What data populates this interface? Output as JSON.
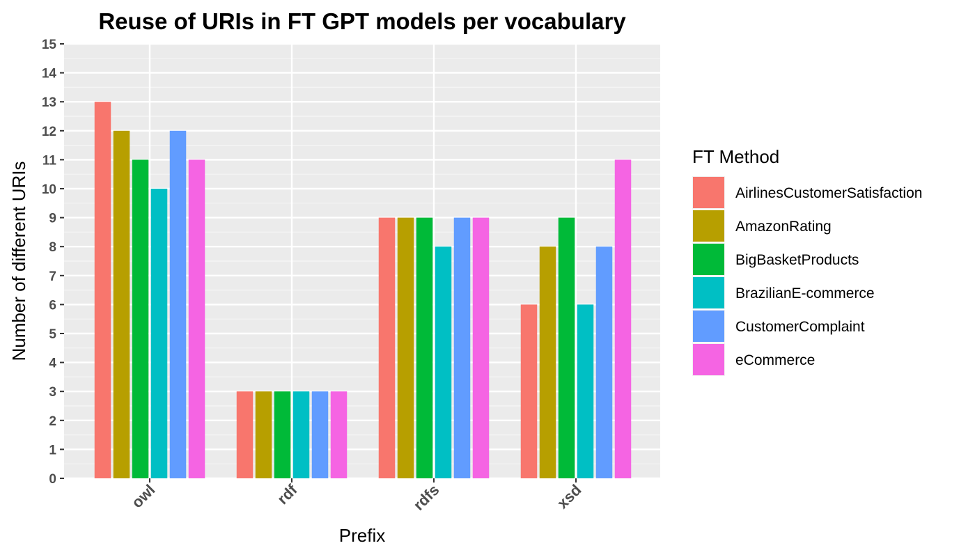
{
  "chart_data": {
    "type": "bar",
    "title": "Reuse of URIs in FT GPT models per vocabulary",
    "xlabel": "Prefix",
    "ylabel": "Number of different URIs",
    "categories": [
      "owl",
      "rdf",
      "rdfs",
      "xsd"
    ],
    "ylim": [
      0,
      15
    ],
    "yticks": [
      0,
      1,
      2,
      3,
      4,
      5,
      6,
      7,
      8,
      9,
      10,
      11,
      12,
      13,
      14,
      15
    ],
    "grid": true,
    "legend": {
      "title": "FT Method",
      "placement": "right"
    },
    "series": [
      {
        "name": "AirlinesCustomerSatisfaction",
        "color": "#F8766D",
        "values": [
          13,
          3,
          9,
          6
        ]
      },
      {
        "name": "AmazonRating",
        "color": "#B79F00",
        "values": [
          12,
          3,
          9,
          8
        ]
      },
      {
        "name": "BigBasketProducts",
        "color": "#00BA38",
        "values": [
          11,
          3,
          9,
          9
        ]
      },
      {
        "name": "BrazilianE-commerce",
        "color": "#00BFC4",
        "values": [
          10,
          3,
          8,
          6
        ]
      },
      {
        "name": "CustomerComplaint",
        "color": "#619CFF",
        "values": [
          12,
          3,
          9,
          8
        ]
      },
      {
        "name": "eCommerce",
        "color": "#F564E3",
        "values": [
          11,
          3,
          9,
          11
        ]
      }
    ]
  }
}
